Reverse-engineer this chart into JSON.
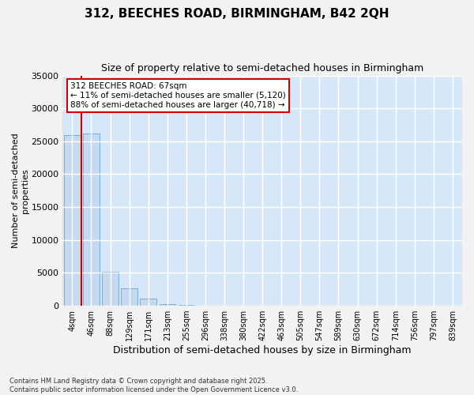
{
  "title": "312, BEECHES ROAD, BIRMINGHAM, B42 2QH",
  "subtitle": "Size of property relative to semi-detached houses in Birmingham",
  "xlabel": "Distribution of semi-detached houses by size in Birmingham",
  "ylabel": "Number of semi-detached\nproperties",
  "annotation_text": "312 BEECHES ROAD: 67sqm\n← 11% of semi-detached houses are smaller (5,120)\n88% of semi-detached houses are larger (40,718) →",
  "categories": [
    "4sqm",
    "46sqm",
    "88sqm",
    "129sqm",
    "171sqm",
    "213sqm",
    "255sqm",
    "296sqm",
    "338sqm",
    "380sqm",
    "422sqm",
    "463sqm",
    "505sqm",
    "547sqm",
    "589sqm",
    "630sqm",
    "672sqm",
    "714sqm",
    "756sqm",
    "797sqm",
    "839sqm"
  ],
  "bar_values": [
    26000,
    26200,
    5200,
    2700,
    1100,
    300,
    80,
    20,
    5,
    2,
    1,
    0,
    0,
    0,
    0,
    0,
    0,
    0,
    0,
    0,
    0
  ],
  "bar_color": "#c5d9f0",
  "bar_edge_color": "#7aadd4",
  "red_line_x": 0.5,
  "annotation_box_color": "#ffffff",
  "annotation_box_edge": "#cc0000",
  "background_color": "#d6e8f7",
  "grid_color": "#ffffff",
  "ylim": [
    0,
    35000
  ],
  "yticks": [
    0,
    5000,
    10000,
    15000,
    20000,
    25000,
    30000,
    35000
  ],
  "fig_background": "#f2f2f2",
  "footnote": "Contains HM Land Registry data © Crown copyright and database right 2025.\nContains public sector information licensed under the Open Government Licence v3.0."
}
